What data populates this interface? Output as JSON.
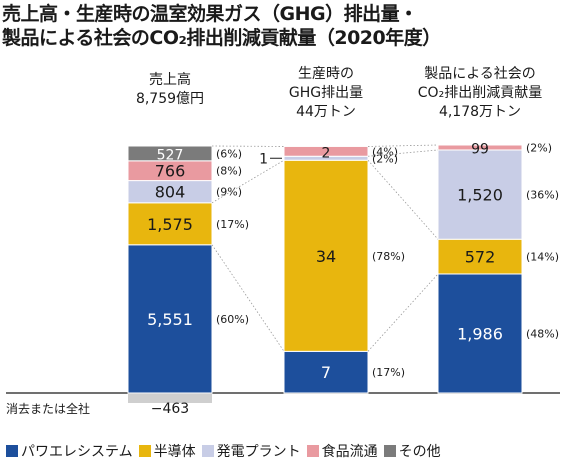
{
  "title": {
    "line1": "売上高・生産時の温室効果ガス（GHG）排出量・",
    "line2": "製品による社会のCO₂排出削減貢献量（2020年度）"
  },
  "chart_data": {
    "type": "bar",
    "stacked": true,
    "columns": [
      {
        "header": [
          "売上高",
          "8,759億円"
        ],
        "bottom_label": "−463",
        "negative_label": "消去または全社",
        "segments": [
          {
            "series": "パワエレシステム",
            "value": "5,551",
            "pct": "(60%)",
            "share": 60
          },
          {
            "series": "半導体",
            "value": "1,575",
            "pct": "(17%)",
            "share": 17
          },
          {
            "series": "発電プラント",
            "value": "804",
            "pct": "(9%)",
            "share": 9
          },
          {
            "series": "食品流通",
            "value": "766",
            "pct": "(8%)",
            "share": 8
          },
          {
            "series": "その他",
            "value": "527",
            "pct": "(6%)",
            "share": 6
          }
        ]
      },
      {
        "header": [
          "生産時の",
          "GHG排出量",
          "44万トン"
        ],
        "segments": [
          {
            "series": "パワエレシステム",
            "value": "7",
            "pct": "(17%)",
            "share": 17
          },
          {
            "series": "半導体",
            "value": "34",
            "pct": "(78%)",
            "share": 78
          },
          {
            "series": "発電プラント",
            "value": "1",
            "pct": "(2%)",
            "share": 1.5
          },
          {
            "series": "食品流通",
            "value": "2",
            "pct": "(4%)",
            "share": 4
          }
        ]
      },
      {
        "header": [
          "製品による社会の",
          "CO₂排出削減貢献量",
          "4,178万トン"
        ],
        "segments": [
          {
            "series": "パワエレシステム",
            "value": "1,986",
            "pct": "(48%)",
            "share": 48
          },
          {
            "series": "半導体",
            "value": "572",
            "pct": "(14%)",
            "share": 14
          },
          {
            "series": "発電プラント",
            "value": "1,520",
            "pct": "(36%)",
            "share": 36
          },
          {
            "series": "食品流通",
            "value": "99",
            "pct": "(2%)",
            "share": 2
          }
        ]
      }
    ],
    "legend": [
      {
        "name": "パワエレシステム",
        "color": "#1d4f9c"
      },
      {
        "name": "半導体",
        "color": "#e8b60e"
      },
      {
        "name": "発電プラント",
        "color": "#c8cde6"
      },
      {
        "name": "食品流通",
        "color": "#e99aa0"
      },
      {
        "name": "その他",
        "color": "#7b7b7b"
      }
    ],
    "text_colors": {
      "パワエレシステム": "#ffffff",
      "半導体": "#1a1a1a",
      "発電プラント": "#1a1a1a",
      "食品流通": "#1a1a1a",
      "その他": "#ffffff"
    },
    "negative_color": "#cfcfcf",
    "legend_placement": "bottom"
  }
}
